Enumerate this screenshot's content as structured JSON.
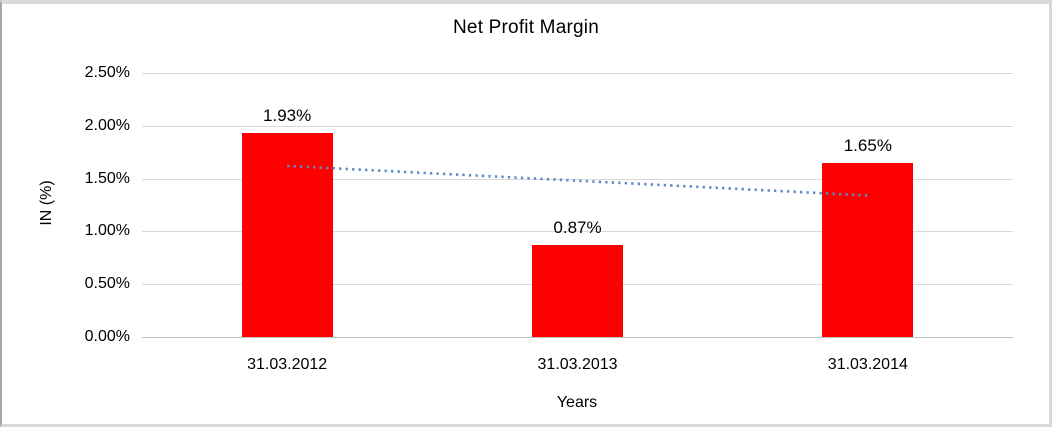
{
  "chart_data": {
    "type": "bar",
    "title": "Net Profit Margin",
    "xlabel": "Years",
    "ylabel": "IN (%)",
    "categories": [
      "31.03.2012",
      "31.03.2013",
      "31.03.2014"
    ],
    "series": [
      {
        "name": "Net Profit Margin",
        "values": [
          1.93,
          0.87,
          1.65
        ]
      }
    ],
    "data_labels": [
      "1.93%",
      "0.87%",
      "1.65%"
    ],
    "ylim": [
      0,
      2.5
    ],
    "ytick_interval": 0.5,
    "ytick_labels": [
      "0.00%",
      "0.50%",
      "1.00%",
      "1.50%",
      "2.00%",
      "2.50%"
    ],
    "grid": true,
    "legend": "none",
    "colors": {
      "bar": "#ff0000",
      "gridline": "#d9d9d9",
      "axis_line": "#c0c0c0",
      "text": "#000000",
      "trendline": "#5b8ac6",
      "frame_border": "#d9d9d9"
    },
    "trendline": {
      "type": "linear",
      "style": "dotted",
      "start_value": 1.62,
      "end_value": 1.34
    }
  }
}
